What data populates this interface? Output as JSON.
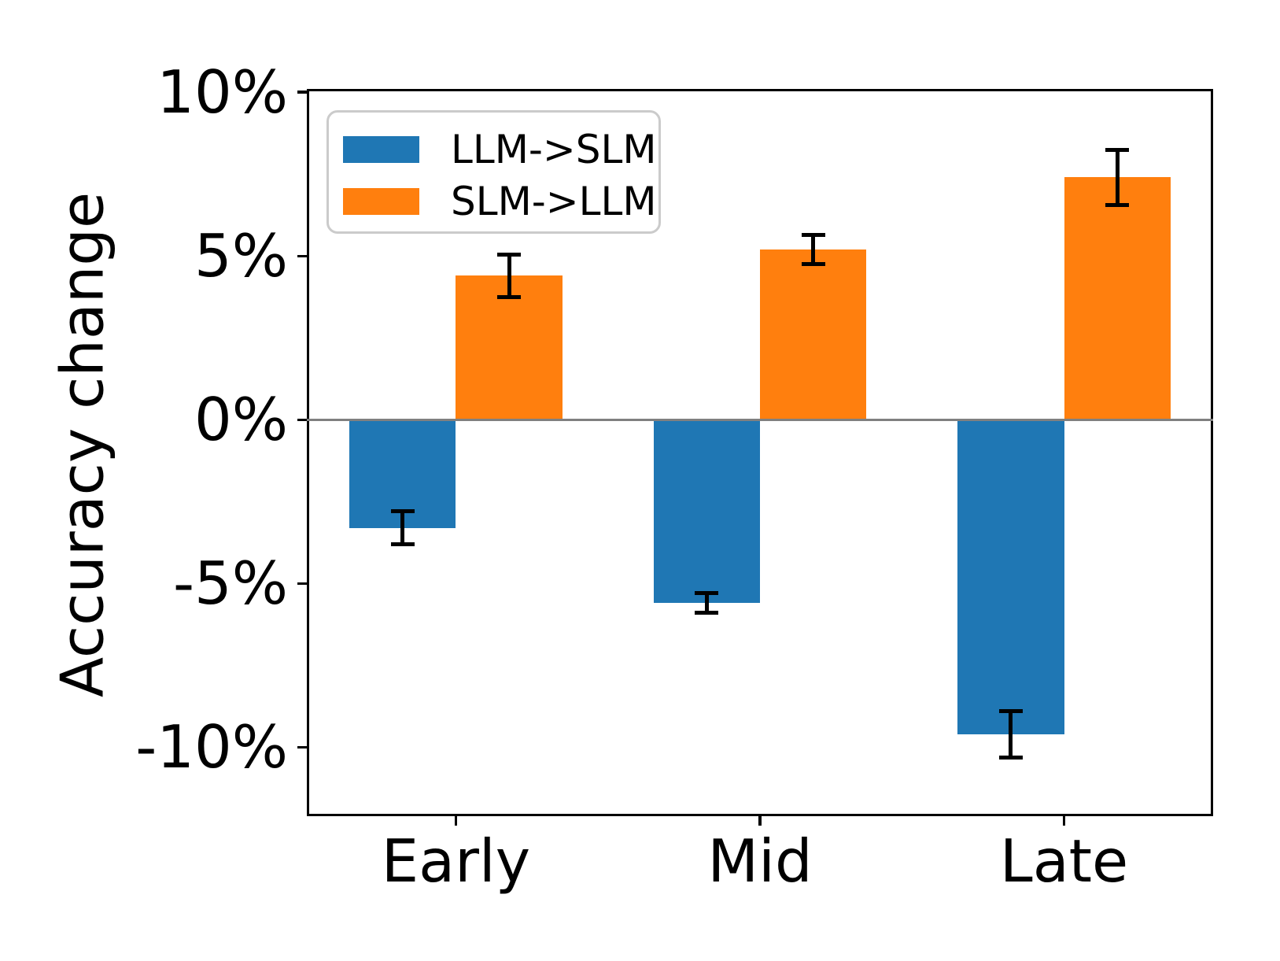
{
  "chart_data": {
    "type": "bar",
    "title": "",
    "categories": [
      "Early",
      "Mid",
      "Late"
    ],
    "series": [
      {
        "name": "LLM->SLM",
        "color": "#1f77b4",
        "values": [
          -3.3,
          -5.6,
          -9.6
        ],
        "errors": [
          0.5,
          0.3,
          0.7
        ]
      },
      {
        "name": "SLM->LLM",
        "color": "#ff7f0e",
        "values": [
          4.4,
          5.2,
          7.4
        ],
        "errors": [
          0.65,
          0.45,
          0.85
        ]
      }
    ],
    "xlabel": "",
    "ylabel": "Accuracy change",
    "yticks": [
      10,
      5,
      0,
      -5,
      -10
    ],
    "ytick_labels": [
      "10%",
      "5%",
      "0%",
      "-5%",
      "-10%"
    ],
    "ylim": [
      -12.1,
      10.1
    ],
    "xlim": [
      -0.49,
      2.49
    ],
    "bar_width": 0.35,
    "grid": false,
    "zero_line_color": "#808080",
    "axis_color": "#000000",
    "legend": {
      "position": "upper left",
      "entries": [
        "LLM->SLM",
        "SLM->LLM"
      ]
    }
  }
}
